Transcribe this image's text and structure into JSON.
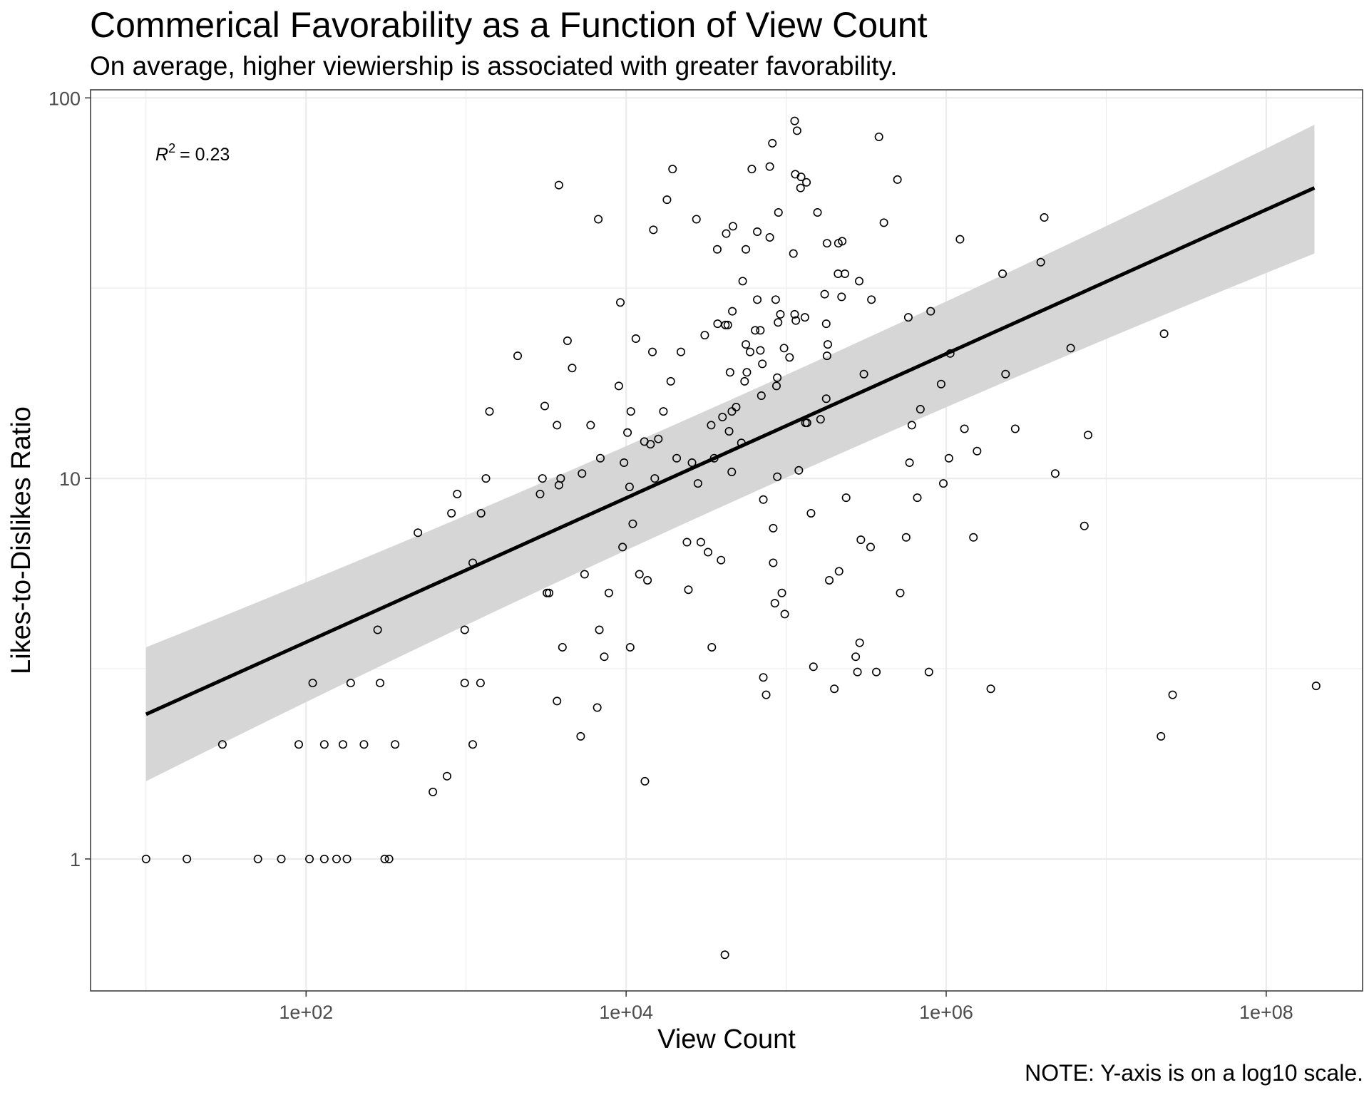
{
  "chart_data": {
    "type": "scatter",
    "title": "Commerical Favorability as a Function of View Count",
    "subtitle": "On average, higher viewiership is associated with greater favorability.",
    "xlabel": "View Count",
    "ylabel": "Likes-to-Dislikes Ratio",
    "caption": "NOTE: Y-axis is on a log10 scale.",
    "x_scale": "log10",
    "y_scale": "log10",
    "xlim": [
      4.5,
      400000000
    ],
    "ylim": [
      0.45,
      105
    ],
    "x_ticks": [
      100,
      10000,
      1000000,
      100000000
    ],
    "x_tick_labels": [
      "1e+02",
      "1e+04",
      "1e+06",
      "1e+08"
    ],
    "y_ticks": [
      1,
      10,
      100
    ],
    "y_tick_labels": [
      "1",
      "10",
      "100"
    ],
    "grid": true,
    "annotation": {
      "prefix": "R",
      "superscript": "2",
      "value": "= 0.23"
    },
    "trend_line": {
      "type": "linear fit on log10 scale",
      "x": [
        10,
        200000000
      ],
      "y": [
        2.4,
        58
      ],
      "ci_lower": [
        1.6,
        39
      ],
      "ci_upper": [
        3.6,
        85
      ]
    },
    "points": [
      [
        10,
        1
      ],
      [
        18,
        1
      ],
      [
        50,
        1
      ],
      [
        70,
        1
      ],
      [
        105,
        1
      ],
      [
        130,
        1
      ],
      [
        155,
        1
      ],
      [
        180,
        1
      ],
      [
        310,
        1
      ],
      [
        330,
        1
      ],
      [
        30,
        2
      ],
      [
        90,
        2
      ],
      [
        130,
        2
      ],
      [
        170,
        2
      ],
      [
        230,
        2
      ],
      [
        360,
        2
      ],
      [
        1100,
        2
      ],
      [
        110,
        2.9
      ],
      [
        190,
        2.9
      ],
      [
        290,
        2.9
      ],
      [
        980,
        2.9
      ],
      [
        1230,
        2.9
      ],
      [
        280,
        4
      ],
      [
        980,
        4
      ],
      [
        1100,
        6
      ],
      [
        620,
        1.5
      ],
      [
        760,
        1.65
      ],
      [
        810,
        8.1
      ],
      [
        880,
        9.1
      ],
      [
        1240,
        8.1
      ],
      [
        1330,
        10
      ],
      [
        1400,
        15
      ],
      [
        500,
        7.2
      ],
      [
        2100,
        21
      ],
      [
        2900,
        9.1
      ],
      [
        3000,
        10
      ],
      [
        3100,
        15.5
      ],
      [
        3200,
        5
      ],
      [
        3300,
        5
      ],
      [
        3700,
        13.8
      ],
      [
        3800,
        9.6
      ],
      [
        3900,
        10
      ],
      [
        3800,
        59
      ],
      [
        4000,
        3.6
      ],
      [
        4300,
        23
      ],
      [
        4600,
        19.5
      ],
      [
        3700,
        2.6
      ],
      [
        5200,
        2.1
      ],
      [
        5300,
        10.3
      ],
      [
        5500,
        5.6
      ],
      [
        6000,
        13.8
      ],
      [
        6700,
        48
      ],
      [
        6900,
        11.3
      ],
      [
        6800,
        4
      ],
      [
        6600,
        2.5
      ],
      [
        7300,
        3.4
      ],
      [
        7800,
        5
      ],
      [
        9000,
        17.5
      ],
      [
        9200,
        29
      ],
      [
        9500,
        6.6
      ],
      [
        9700,
        11
      ],
      [
        10200,
        13.2
      ],
      [
        10500,
        9.5
      ],
      [
        10700,
        15
      ],
      [
        10600,
        3.6
      ],
      [
        11000,
        7.6
      ],
      [
        11500,
        23.3
      ],
      [
        12100,
        5.6
      ],
      [
        13100,
        1.6
      ],
      [
        13000,
        12.5
      ],
      [
        13600,
        5.4
      ],
      [
        14200,
        12.3
      ],
      [
        15100,
        10
      ],
      [
        14800,
        45
      ],
      [
        14600,
        21.5
      ],
      [
        15900,
        12.7
      ],
      [
        17100,
        15
      ],
      [
        18000,
        54
      ],
      [
        19000,
        18
      ],
      [
        19500,
        65
      ],
      [
        20700,
        11.3
      ],
      [
        22000,
        21.5
      ],
      [
        24000,
        6.8
      ],
      [
        24500,
        5.1
      ],
      [
        25800,
        11
      ],
      [
        27500,
        48
      ],
      [
        28100,
        9.7
      ],
      [
        29300,
        6.8
      ],
      [
        31000,
        23.8
      ],
      [
        32500,
        6.4
      ],
      [
        34000,
        13.8
      ],
      [
        34300,
        3.6
      ],
      [
        35500,
        11.3
      ],
      [
        37100,
        40
      ],
      [
        37300,
        25.5
      ],
      [
        39200,
        6.1
      ],
      [
        40000,
        14.5
      ],
      [
        41400,
        0.56
      ],
      [
        41700,
        25.3
      ],
      [
        42200,
        44
      ],
      [
        43200,
        25.3
      ],
      [
        44000,
        13.3
      ],
      [
        44600,
        19
      ],
      [
        45800,
        15
      ],
      [
        45700,
        10.4
      ],
      [
        46100,
        27.5
      ],
      [
        46500,
        46
      ],
      [
        48700,
        15.4
      ],
      [
        52500,
        12.4
      ],
      [
        53500,
        33
      ],
      [
        55000,
        18
      ],
      [
        56000,
        22.5
      ],
      [
        56000,
        40
      ],
      [
        56800,
        19
      ],
      [
        59500,
        21.5
      ],
      [
        61000,
        65
      ],
      [
        64000,
        24.5
      ],
      [
        66000,
        29.5
      ],
      [
        66000,
        44.5
      ],
      [
        69000,
        24.5
      ],
      [
        69000,
        21.7
      ],
      [
        70000,
        16.5
      ],
      [
        71000,
        20
      ],
      [
        72000,
        3
      ],
      [
        72000,
        8.8
      ],
      [
        75000,
        2.7
      ],
      [
        79000,
        43
      ],
      [
        79000,
        66
      ],
      [
        82000,
        76
      ],
      [
        83000,
        6
      ],
      [
        83000,
        7.4
      ],
      [
        85000,
        4.7
      ],
      [
        86000,
        29.5
      ],
      [
        87000,
        17.5
      ],
      [
        88000,
        10.1
      ],
      [
        88000,
        18.4
      ],
      [
        89000,
        25.7
      ],
      [
        89500,
        50
      ],
      [
        92000,
        27
      ],
      [
        94000,
        5
      ],
      [
        97000,
        22
      ],
      [
        98000,
        4.4
      ],
      [
        105000,
        20.8
      ],
      [
        111000,
        39
      ],
      [
        113000,
        27
      ],
      [
        113000,
        87
      ],
      [
        114000,
        63
      ],
      [
        115000,
        26
      ],
      [
        117000,
        82
      ],
      [
        120000,
        10.5
      ],
      [
        123000,
        58
      ],
      [
        124000,
        62
      ],
      [
        131000,
        26.5
      ],
      [
        132000,
        14
      ],
      [
        134000,
        60
      ],
      [
        135000,
        14
      ],
      [
        143000,
        8.1
      ],
      [
        148000,
        3.2
      ],
      [
        157000,
        50
      ],
      [
        164000,
        14.3
      ],
      [
        174000,
        30.5
      ],
      [
        178000,
        16.2
      ],
      [
        178000,
        25.5
      ],
      [
        180000,
        41.5
      ],
      [
        180000,
        21
      ],
      [
        182000,
        22.5
      ],
      [
        186000,
        5.4
      ],
      [
        200000,
        2.8
      ],
      [
        211000,
        34.5
      ],
      [
        212000,
        41.5
      ],
      [
        214000,
        5.7
      ],
      [
        222000,
        30
      ],
      [
        224000,
        42
      ],
      [
        233000,
        34.5
      ],
      [
        237000,
        8.9
      ],
      [
        272000,
        3.4
      ],
      [
        279000,
        3.1
      ],
      [
        286000,
        33
      ],
      [
        288000,
        3.7
      ],
      [
        293000,
        6.9
      ],
      [
        306000,
        18.8
      ],
      [
        337000,
        6.6
      ],
      [
        341000,
        29.5
      ],
      [
        366000,
        3.1
      ],
      [
        380000,
        79
      ],
      [
        408000,
        47
      ],
      [
        496000,
        61
      ],
      [
        516000,
        5
      ],
      [
        562000,
        7
      ],
      [
        580000,
        26.5
      ],
      [
        590000,
        11
      ],
      [
        610000,
        13.8
      ],
      [
        660000,
        8.9
      ],
      [
        690000,
        15.2
      ],
      [
        780000,
        3.1
      ],
      [
        800000,
        27.5
      ],
      [
        930000,
        17.7
      ],
      [
        960000,
        9.7
      ],
      [
        1040000,
        11.3
      ],
      [
        1060000,
        21.3
      ],
      [
        1220000,
        42.5
      ],
      [
        1300000,
        13.5
      ],
      [
        1480000,
        7
      ],
      [
        1560000,
        11.8
      ],
      [
        1900000,
        2.8
      ],
      [
        2250000,
        34.5
      ],
      [
        2350000,
        18.8
      ],
      [
        2700000,
        13.5
      ],
      [
        3900000,
        37
      ],
      [
        4100000,
        48.5
      ],
      [
        4800000,
        10.3
      ],
      [
        6000000,
        22
      ],
      [
        7300000,
        7.5
      ],
      [
        7700000,
        13
      ],
      [
        22000000,
        2.1
      ],
      [
        23000000,
        24
      ],
      [
        26000000,
        2.7
      ],
      [
        205000000,
        2.85
      ]
    ]
  }
}
